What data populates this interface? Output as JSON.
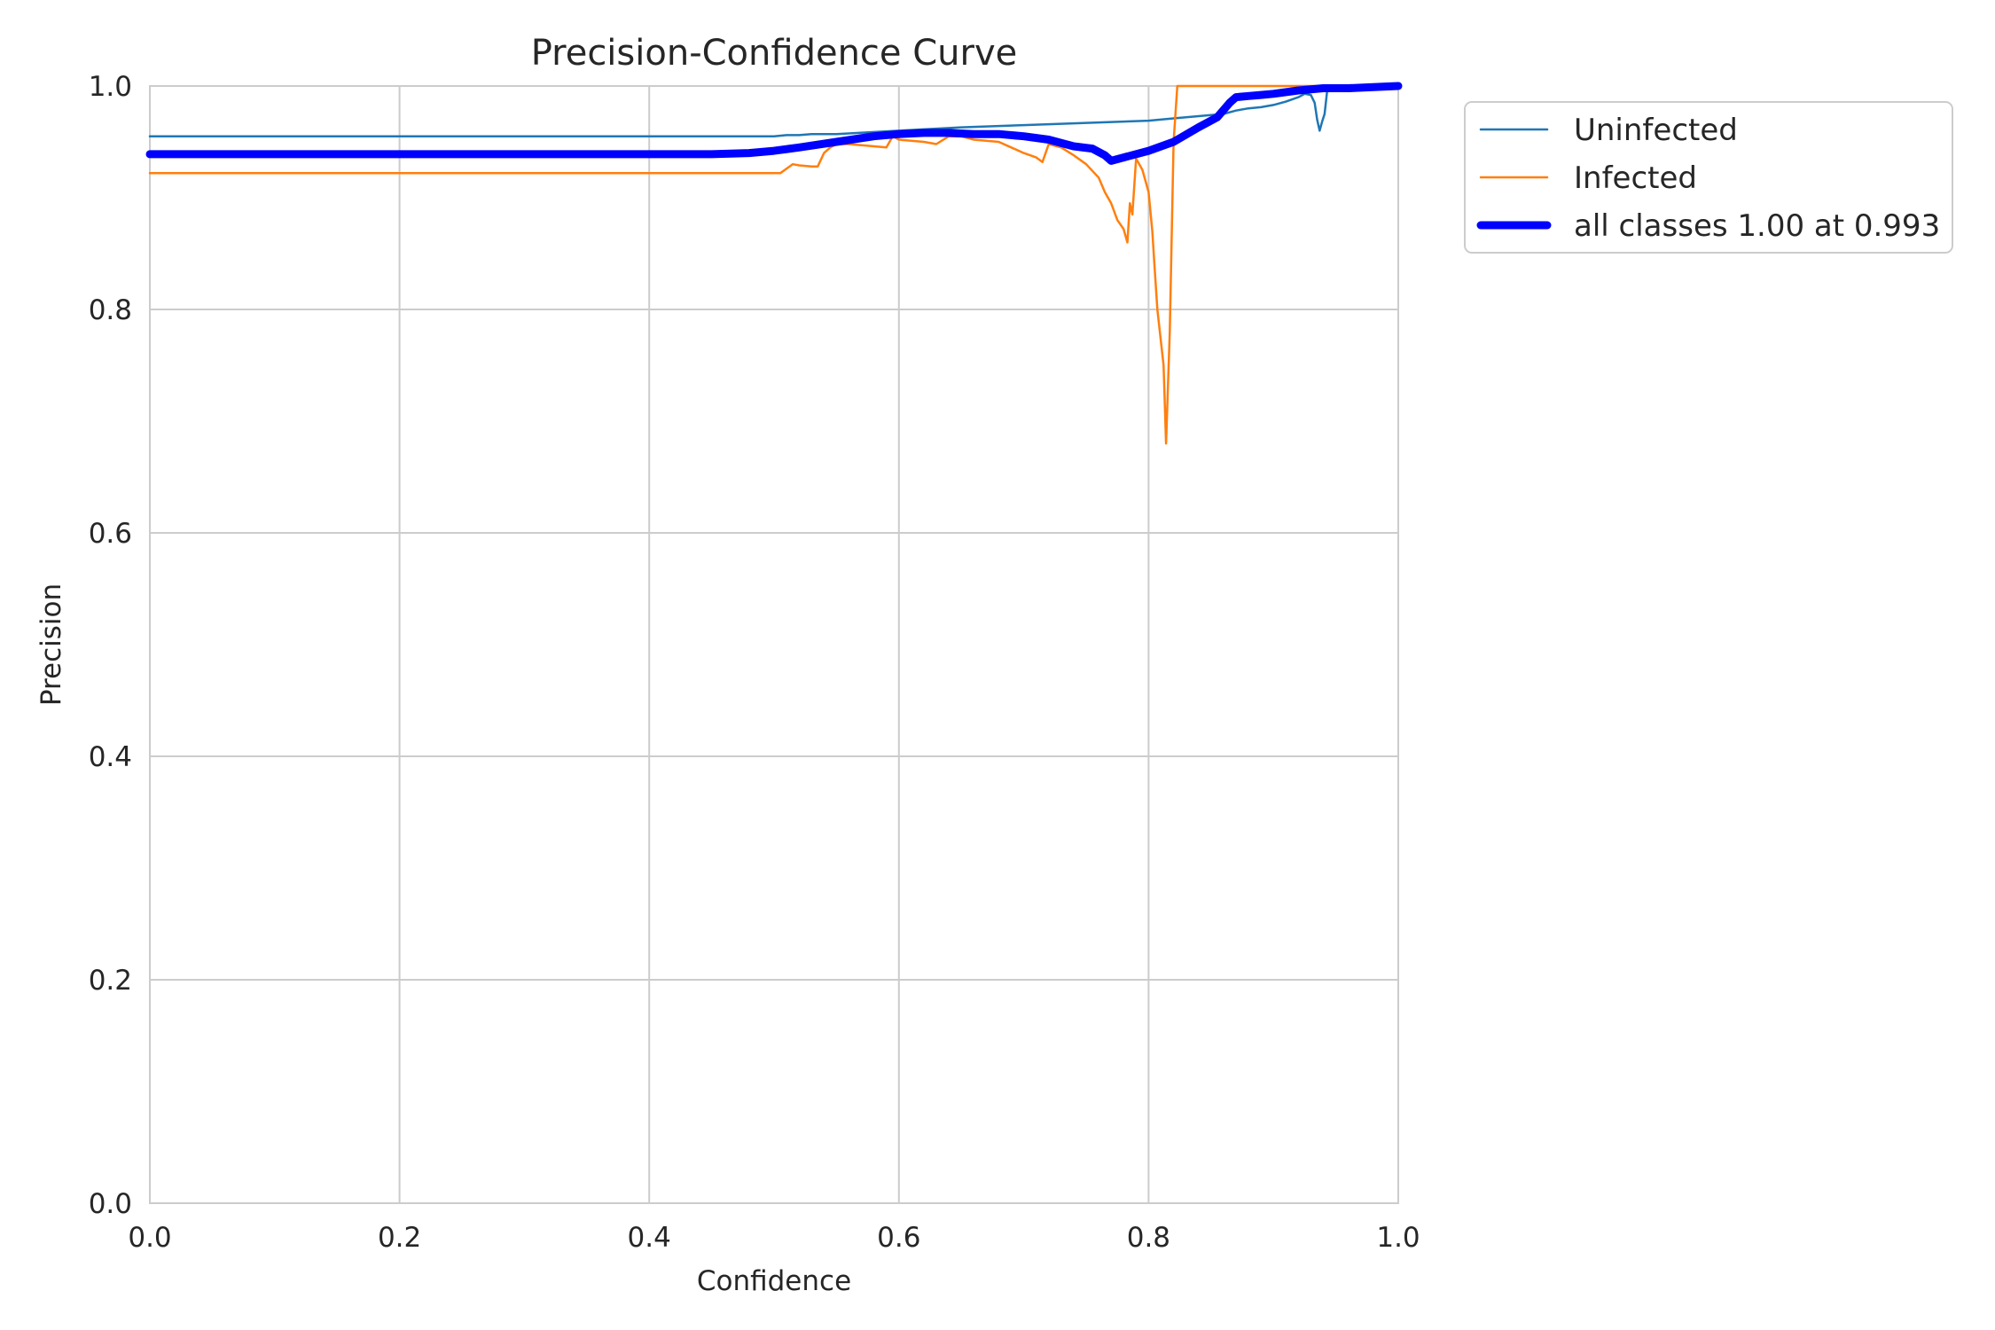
{
  "chart_data": {
    "type": "line",
    "title": "Precision-Confidence Curve",
    "xlabel": "Confidence",
    "ylabel": "Precision",
    "xlim": [
      0,
      1
    ],
    "ylim": [
      0,
      1
    ],
    "xticks": [
      "0.0",
      "0.2",
      "0.4",
      "0.6",
      "0.8",
      "1.0"
    ],
    "yticks": [
      "0.0",
      "0.2",
      "0.4",
      "0.6",
      "0.8",
      "1.0"
    ],
    "grid": true,
    "legend_position": "outside-top-right",
    "series": [
      {
        "name": "Uninfected",
        "color": "#1f77b4",
        "width": "thin",
        "points": [
          [
            0.0,
            0.955
          ],
          [
            0.5,
            0.955
          ],
          [
            0.51,
            0.956
          ],
          [
            0.52,
            0.956
          ],
          [
            0.53,
            0.957
          ],
          [
            0.55,
            0.957
          ],
          [
            0.6,
            0.96
          ],
          [
            0.65,
            0.963
          ],
          [
            0.7,
            0.965
          ],
          [
            0.75,
            0.967
          ],
          [
            0.8,
            0.969
          ],
          [
            0.82,
            0.971
          ],
          [
            0.84,
            0.973
          ],
          [
            0.86,
            0.975
          ],
          [
            0.87,
            0.978
          ],
          [
            0.88,
            0.98
          ],
          [
            0.89,
            0.981
          ],
          [
            0.9,
            0.983
          ],
          [
            0.91,
            0.986
          ],
          [
            0.92,
            0.99
          ],
          [
            0.925,
            0.993
          ],
          [
            0.93,
            0.992
          ],
          [
            0.933,
            0.985
          ],
          [
            0.935,
            0.97
          ],
          [
            0.937,
            0.96
          ],
          [
            0.939,
            0.968
          ],
          [
            0.941,
            0.975
          ],
          [
            0.943,
            0.995
          ],
          [
            0.95,
            0.997
          ],
          [
            0.97,
            0.998
          ],
          [
            1.0,
            1.0
          ]
        ]
      },
      {
        "name": "Infected",
        "color": "#ff7f0e",
        "width": "thin",
        "points": [
          [
            0.0,
            0.922
          ],
          [
            0.505,
            0.922
          ],
          [
            0.515,
            0.93
          ],
          [
            0.52,
            0.929
          ],
          [
            0.53,
            0.928
          ],
          [
            0.535,
            0.928
          ],
          [
            0.54,
            0.94
          ],
          [
            0.545,
            0.945
          ],
          [
            0.55,
            0.948
          ],
          [
            0.56,
            0.948
          ],
          [
            0.58,
            0.946
          ],
          [
            0.59,
            0.945
          ],
          [
            0.595,
            0.955
          ],
          [
            0.6,
            0.952
          ],
          [
            0.62,
            0.95
          ],
          [
            0.63,
            0.948
          ],
          [
            0.64,
            0.955
          ],
          [
            0.65,
            0.955
          ],
          [
            0.66,
            0.952
          ],
          [
            0.68,
            0.95
          ],
          [
            0.69,
            0.945
          ],
          [
            0.7,
            0.94
          ],
          [
            0.71,
            0.936
          ],
          [
            0.715,
            0.932
          ],
          [
            0.72,
            0.948
          ],
          [
            0.73,
            0.945
          ],
          [
            0.74,
            0.938
          ],
          [
            0.75,
            0.93
          ],
          [
            0.76,
            0.918
          ],
          [
            0.765,
            0.905
          ],
          [
            0.77,
            0.895
          ],
          [
            0.775,
            0.88
          ],
          [
            0.78,
            0.872
          ],
          [
            0.783,
            0.86
          ],
          [
            0.785,
            0.895
          ],
          [
            0.787,
            0.885
          ],
          [
            0.79,
            0.935
          ],
          [
            0.795,
            0.925
          ],
          [
            0.8,
            0.905
          ],
          [
            0.803,
            0.87
          ],
          [
            0.805,
            0.835
          ],
          [
            0.807,
            0.8
          ],
          [
            0.81,
            0.77
          ],
          [
            0.812,
            0.75
          ],
          [
            0.814,
            0.68
          ],
          [
            0.817,
            0.78
          ],
          [
            0.82,
            0.95
          ],
          [
            0.823,
            1.0
          ],
          [
            1.0,
            1.0
          ]
        ]
      },
      {
        "name": "all classes 1.00 at 0.993",
        "color": "#0000ff",
        "width": "thick",
        "points": [
          [
            0.0,
            0.939
          ],
          [
            0.45,
            0.939
          ],
          [
            0.48,
            0.94
          ],
          [
            0.5,
            0.942
          ],
          [
            0.52,
            0.945
          ],
          [
            0.55,
            0.95
          ],
          [
            0.58,
            0.955
          ],
          [
            0.6,
            0.957
          ],
          [
            0.62,
            0.958
          ],
          [
            0.64,
            0.958
          ],
          [
            0.66,
            0.957
          ],
          [
            0.68,
            0.957
          ],
          [
            0.7,
            0.955
          ],
          [
            0.72,
            0.952
          ],
          [
            0.74,
            0.946
          ],
          [
            0.755,
            0.944
          ],
          [
            0.765,
            0.938
          ],
          [
            0.77,
            0.933
          ],
          [
            0.78,
            0.936
          ],
          [
            0.8,
            0.942
          ],
          [
            0.82,
            0.95
          ],
          [
            0.84,
            0.963
          ],
          [
            0.855,
            0.972
          ],
          [
            0.865,
            0.985
          ],
          [
            0.87,
            0.99
          ],
          [
            0.88,
            0.991
          ],
          [
            0.89,
            0.992
          ],
          [
            0.9,
            0.993
          ],
          [
            0.92,
            0.996
          ],
          [
            0.94,
            0.998
          ],
          [
            0.96,
            0.998
          ],
          [
            0.98,
            0.999
          ],
          [
            1.0,
            1.0
          ]
        ]
      }
    ]
  }
}
